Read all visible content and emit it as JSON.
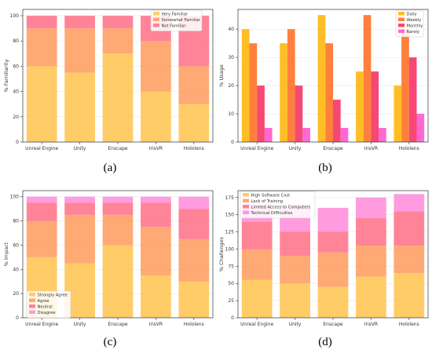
{
  "chart_data": [
    {
      "type": "bar",
      "stacked": true,
      "panel_label": "(a)",
      "categories": [
        "Unreal Engine",
        "Unity",
        "Enscape",
        "IrisVR",
        "Hololens"
      ],
      "ylabel": "% Familiarity",
      "ylim": [
        0,
        105
      ],
      "yticks": [
        0,
        20,
        40,
        60,
        80,
        100
      ],
      "grid": true,
      "legend_position": "top-right",
      "series": [
        {
          "name": "Very Familiar",
          "values": [
            60,
            55,
            70,
            40,
            30
          ],
          "color": "#FFC34D"
        },
        {
          "name": "Somewhat Familiar",
          "values": [
            30,
            35,
            20,
            40,
            30
          ],
          "color": "#FF9A5C"
        },
        {
          "name": "Not Familiar",
          "values": [
            10,
            10,
            10,
            20,
            40
          ],
          "color": "#FF6F86"
        }
      ]
    },
    {
      "type": "bar",
      "stacked": false,
      "panel_label": "(b)",
      "categories": [
        "Unreal Engine",
        "Unity",
        "Enscape",
        "IrisVR",
        "Hololens"
      ],
      "ylabel": "% Usage",
      "ylim": [
        0,
        47
      ],
      "yticks": [
        0,
        10,
        20,
        30,
        40
      ],
      "grid": true,
      "legend_position": "top-right",
      "series": [
        {
          "name": "Daily",
          "values": [
            40,
            35,
            45,
            25,
            20
          ],
          "color": "#FFB300"
        },
        {
          "name": "Weekly",
          "values": [
            35,
            40,
            35,
            45,
            40
          ],
          "color": "#FF6A1A"
        },
        {
          "name": "Monthly",
          "values": [
            20,
            20,
            15,
            25,
            30
          ],
          "color": "#F5285A"
        },
        {
          "name": "Rarely",
          "values": [
            5,
            5,
            5,
            5,
            10
          ],
          "color": "#FF4DCB"
        }
      ]
    },
    {
      "type": "bar",
      "stacked": true,
      "panel_label": "(c)",
      "categories": [
        "Unreal Engine",
        "Unity",
        "Enscape",
        "IrisVR",
        "Hololens"
      ],
      "ylabel": "% Impact",
      "ylim": [
        0,
        105
      ],
      "yticks": [
        0,
        20,
        40,
        60,
        80,
        100
      ],
      "grid": true,
      "legend_position": "bottom-left",
      "series": [
        {
          "name": "Strongly Agree",
          "values": [
            50,
            45,
            60,
            35,
            30
          ],
          "color": "#FFC34D"
        },
        {
          "name": "Agree",
          "values": [
            30,
            40,
            25,
            40,
            35
          ],
          "color": "#FF9A5C"
        },
        {
          "name": "Neutral",
          "values": [
            15,
            10,
            10,
            20,
            25
          ],
          "color": "#FF6F86"
        },
        {
          "name": "Disagree",
          "values": [
            5,
            5,
            5,
            5,
            10
          ],
          "color": "#FF8AD8"
        }
      ]
    },
    {
      "type": "bar",
      "stacked": true,
      "panel_label": "(d)",
      "categories": [
        "Unreal Engine",
        "Unity",
        "Enscape",
        "IrisVR",
        "Hololens"
      ],
      "ylabel": "% Challenges",
      "ylim": [
        0,
        185
      ],
      "yticks": [
        0,
        25,
        50,
        75,
        100,
        125,
        150,
        175
      ],
      "grid": true,
      "legend_position": "top-left",
      "series": [
        {
          "name": "High Software Cost",
          "values": [
            55,
            50,
            45,
            60,
            65
          ],
          "color": "#FFC34D"
        },
        {
          "name": "Lack of Training",
          "values": [
            45,
            40,
            50,
            45,
            40
          ],
          "color": "#FF9A5C"
        },
        {
          "name": "Limited Access to Computers",
          "values": [
            40,
            35,
            30,
            40,
            50
          ],
          "color": "#FF6F86"
        },
        {
          "name": "Technical Difficulties",
          "values": [
            25,
            40,
            35,
            30,
            25
          ],
          "color": "#FF8AD8"
        }
      ]
    }
  ]
}
